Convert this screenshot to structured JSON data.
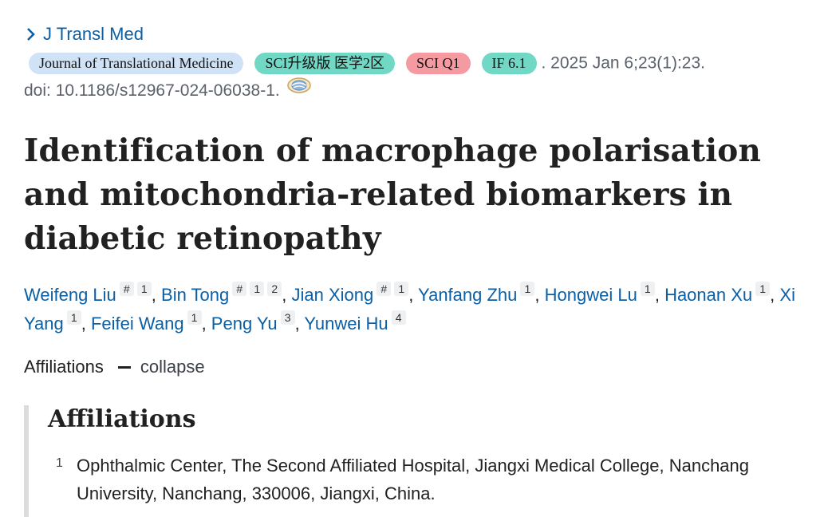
{
  "journal_link": {
    "label": "J Transl Med"
  },
  "badges": {
    "journal": "Journal of Translational Medicine",
    "sci": "SCI升级版 医学2区",
    "quartile": "SCI Q1",
    "impact": "IF 6.1"
  },
  "citation": {
    "date_volume": ". 2025 Jan 6;23(1):23.",
    "doi": "doi: 10.1186/s12967-024-06038-1."
  },
  "article": {
    "title": "Identification of macrophage polarisation and mitochondria-related biomarkers in diabetic retinopathy"
  },
  "authors": [
    {
      "name": "Weifeng Liu",
      "marks": [
        "#",
        "1"
      ]
    },
    {
      "name": "Bin Tong",
      "marks": [
        "#",
        "1",
        "2"
      ]
    },
    {
      "name": "Jian Xiong",
      "marks": [
        "#",
        "1"
      ]
    },
    {
      "name": "Yanfang Zhu",
      "marks": [
        "1"
      ]
    },
    {
      "name": "Hongwei Lu",
      "marks": [
        "1"
      ]
    },
    {
      "name": "Haonan Xu",
      "marks": [
        "1"
      ]
    },
    {
      "name": "Xi Yang",
      "marks": [
        "1"
      ]
    },
    {
      "name": "Feifei Wang",
      "marks": [
        "1"
      ]
    },
    {
      "name": "Peng Yu",
      "marks": [
        "3"
      ]
    },
    {
      "name": "Yunwei Hu",
      "marks": [
        "4"
      ]
    }
  ],
  "affiliations_toggle": {
    "label": "Affiliations",
    "action": "collapse"
  },
  "affiliations": {
    "heading": "Affiliations",
    "items": [
      {
        "num": "1",
        "text": "Ophthalmic Center, The Second Affiliated Hospital, Jiangxi Medical College, Nanchang University, Nanchang, 330006, Jiangxi, China."
      }
    ]
  },
  "colors": {
    "link": "#0b5fa5",
    "badge_blue": "#cfe2f6",
    "badge_teal": "#72d8c6",
    "badge_red": "#f59aa0"
  }
}
